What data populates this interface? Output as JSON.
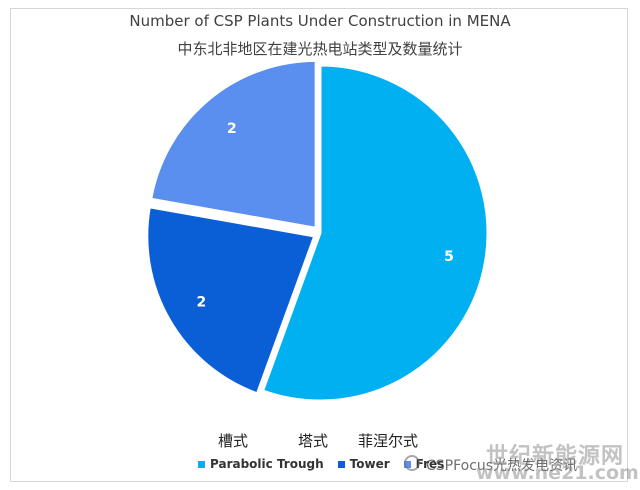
{
  "chart_data": {
    "type": "pie",
    "title": "Number of CSP Plants Under Construction in MENA",
    "subtitle": "中东北非地区在建光热电站类型及数量统计",
    "categories": [
      "Parabolic Trough",
      "Tower",
      "Fresnel"
    ],
    "values": [
      5,
      2,
      2
    ],
    "data_labels": [
      "5",
      "2",
      "2"
    ],
    "colors": [
      "#00B0F0",
      "#0A5FD6",
      "#5B8FEF"
    ],
    "legend": {
      "placement": "bottom",
      "entries": [
        "Parabolic Trough",
        "Tower",
        "Fres"
      ],
      "chinese_labels": [
        "槽式",
        "塔式",
        "菲涅尔式"
      ]
    }
  },
  "watermark": {
    "site_name": "世纪新能源网",
    "url": "www.ne21.com",
    "caption": "CSPFocus光热发电资讯"
  }
}
